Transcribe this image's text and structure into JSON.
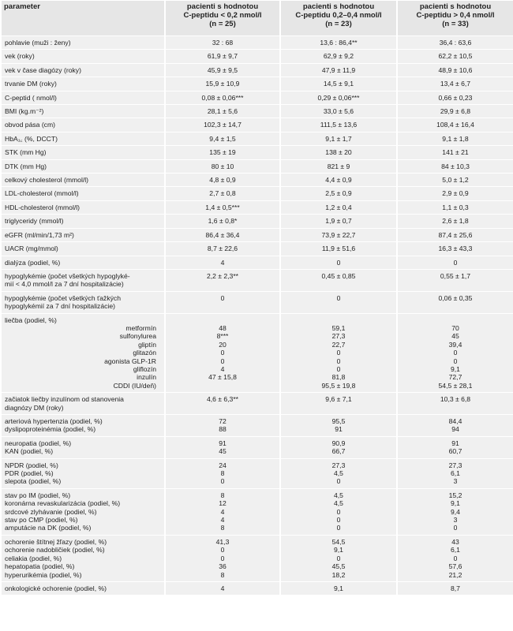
{
  "header": {
    "parameter": "parameter",
    "groups": [
      {
        "line1": "pacienti s hodnotou",
        "line2": "C-peptidu < 0,2 nmol/l",
        "line3": "(n = 25)"
      },
      {
        "line1": "pacienti s hodnotou",
        "line2": "C-peptidu 0,2–0,4 nmol/l",
        "line3": "(n = 23)"
      },
      {
        "line1": "pacienti s hodnotou",
        "line2": "C-peptidu > 0,4 nmol/l",
        "line3": "(n = 33)"
      }
    ]
  },
  "rows": [
    {
      "labels": [
        "pohlavie (muži : ženy)"
      ],
      "v1": [
        "32 : 68"
      ],
      "v2": [
        "13,6 : 86,4**"
      ],
      "v3": [
        "36,4 : 63,6"
      ]
    },
    {
      "labels": [
        "vek (roky)"
      ],
      "v1": [
        "61,9 ± 9,7"
      ],
      "v2": [
        "62,9 ± 9,2"
      ],
      "v3": [
        "62,2 ± 10,5"
      ]
    },
    {
      "labels": [
        "vek v čase diagózy (roky)"
      ],
      "v1": [
        "45,9 ± 9,5"
      ],
      "v2": [
        "47,9 ± 11,9"
      ],
      "v3": [
        "48,9 ± 10,6"
      ]
    },
    {
      "labels": [
        "trvanie DM (roky)"
      ],
      "v1": [
        "15,9 ± 10,9"
      ],
      "v2": [
        "14,5 ± 9,1"
      ],
      "v3": [
        "13,4 ± 6,7"
      ]
    },
    {
      "labels": [
        "C-peptid ( nmol/l)"
      ],
      "v1": [
        "0,08 ± 0,06***"
      ],
      "v2": [
        "0,29 ± 0,06***"
      ],
      "v3": [
        "0,66 ± 0,23"
      ]
    },
    {
      "labels": [
        "BMI (kg.m⁻²)"
      ],
      "v1": [
        "28,1 ± 5,6"
      ],
      "v2": [
        "33,0 ± 5,6"
      ],
      "v3": [
        "29,9 ± 6,8"
      ]
    },
    {
      "labels": [
        "obvod pása (cm)"
      ],
      "v1": [
        "102,3 ± 14,7"
      ],
      "v2": [
        "111,5 ± 13,6"
      ],
      "v3": [
        "108,4 ± 16,4"
      ]
    },
    {
      "labels": [
        "HbA₁꜀ (%, DCCT)"
      ],
      "v1": [
        "9,4 ± 1,5"
      ],
      "v2": [
        "9,1 ± 1,7"
      ],
      "v3": [
        "9,1 ± 1,8"
      ]
    },
    {
      "labels": [
        "STK (mm Hg)"
      ],
      "v1": [
        "135 ± 19"
      ],
      "v2": [
        "138 ± 20"
      ],
      "v3": [
        "141 ± 21"
      ]
    },
    {
      "labels": [
        "DTK (mm Hg)"
      ],
      "v1": [
        "80 ± 10"
      ],
      "v2": [
        "821 ± 9"
      ],
      "v3": [
        "84 ± 10,3"
      ]
    },
    {
      "labels": [
        "celkový cholesterol (mmol/l)"
      ],
      "v1": [
        "4,8 ± 0,9"
      ],
      "v2": [
        "4,4 ± 0,9"
      ],
      "v3": [
        "5,0 ± 1,2"
      ]
    },
    {
      "labels": [
        "LDL-cholesterol (mmol/l)"
      ],
      "v1": [
        "2,7 ± 0,8"
      ],
      "v2": [
        "2,5 ± 0,9"
      ],
      "v3": [
        "2,9 ± 0,9"
      ]
    },
    {
      "labels": [
        "HDL-cholesterol (mmol/l)"
      ],
      "v1": [
        "1,4 ± 0,5***"
      ],
      "v2": [
        "1,2 ± 0,4"
      ],
      "v3": [
        "1,1 ± 0,3"
      ]
    },
    {
      "labels": [
        "triglyceridy (mmol/l)"
      ],
      "v1": [
        "1,6 ± 0,8*"
      ],
      "v2": [
        "1,9 ± 0,7"
      ],
      "v3": [
        "2,6 ± 1,8"
      ]
    },
    {
      "labels": [
        "eGFR (ml/min/1,73 m²)"
      ],
      "v1": [
        "86,4 ± 36,4"
      ],
      "v2": [
        "73,9 ± 22,7"
      ],
      "v3": [
        "87,4 ± 25,6"
      ]
    },
    {
      "labels": [
        "UACR (mg/mmol)"
      ],
      "v1": [
        "8,7 ± 22,6"
      ],
      "v2": [
        "11,9 ± 51,6"
      ],
      "v3": [
        "16,3 ± 43,3"
      ]
    },
    {
      "labels": [
        "dialýza (podiel, %)"
      ],
      "v1": [
        "4"
      ],
      "v2": [
        "0"
      ],
      "v3": [
        "0"
      ]
    },
    {
      "labels": [
        "hypoglykémie (počet všetkých hypoglyké-",
        "mií < 4,0 mmol/l za 7 dní hospitalizácie)"
      ],
      "v1": [
        "2,2 ± 2,3**"
      ],
      "v2": [
        "0,45 ± 0,85"
      ],
      "v3": [
        "0,55 ± 1,7"
      ]
    },
    {
      "labels": [
        "hypoglykémie (počet všetkých ťažkých",
        "hypoglykémií za 7 dní hospitalizácie)"
      ],
      "v1": [
        "0"
      ],
      "v2": [
        "0"
      ],
      "v3": [
        "0,06 ± 0,35"
      ]
    },
    {
      "head": "liečba (podiel, %)",
      "subs": [
        "metformín",
        "sulfonylurea",
        "gliptín",
        "glitazón",
        "agonista GLP-1R",
        "gliflozín",
        "inzulín",
        "CDDI (IU/deň)"
      ],
      "v1": [
        "48",
        "8***",
        "20",
        "0",
        "0",
        "4",
        "47 ± 15,8",
        ""
      ],
      "v2": [
        "59,1",
        "27,3",
        "22,7",
        "0",
        "0",
        "0",
        "81,8",
        "95,5 ± 19,8"
      ],
      "v3": [
        "70",
        "45",
        "39,4",
        "0",
        "0",
        "9,1",
        "72,7",
        "54,5 ± 28,1"
      ]
    },
    {
      "labels": [
        "začiatok liečby inzulínom od stanovenia",
        "diagnózy DM (roky)"
      ],
      "v1": [
        "4,6 ± 6,3**"
      ],
      "v2": [
        "9,6 ± 7,1"
      ],
      "v3": [
        "10,3 ± 6,8"
      ]
    },
    {
      "labels": [
        "arteriová hypertenzia (podiel, %)",
        "dyslipoproteinémia (podiel, %)"
      ],
      "v1": [
        "72",
        "88"
      ],
      "v2": [
        "95,5",
        "91"
      ],
      "v3": [
        "84,4",
        "94"
      ]
    },
    {
      "labels": [
        "neuropatia (podiel, %)",
        "KAN (podiel, %)"
      ],
      "v1": [
        "91",
        "45"
      ],
      "v2": [
        "90,9",
        "66,7"
      ],
      "v3": [
        "91",
        "60,7"
      ]
    },
    {
      "labels": [
        "NPDR (podiel, %)",
        "PDR (podiel, %)",
        "slepota (podiel, %)"
      ],
      "v1": [
        "24",
        "8",
        "0"
      ],
      "v2": [
        "27,3",
        "4,5",
        "0"
      ],
      "v3": [
        "27,3",
        "6,1",
        "3"
      ]
    },
    {
      "labels": [
        "stav po IM (podiel, %)",
        "koronárna revaskularizácia (podiel, %)",
        "srdcové zlyhávanie (podiel, %)",
        "stav po CMP (podiel, %)",
        "amputácie na DK (podiel, %)"
      ],
      "v1": [
        "8",
        "12",
        "4",
        "4",
        "8"
      ],
      "v2": [
        "4,5",
        "4,5",
        "0",
        "0",
        "0"
      ],
      "v3": [
        "15,2",
        "9,1",
        "9,4",
        "3",
        "0"
      ]
    },
    {
      "labels": [
        "ochorenie štítnej žľazy (podiel, %)",
        "ochorenie nadobličiek (podiel, %)",
        "celiakia (podiel, %)",
        "hepatopatia (podiel, %)",
        "hyperurikémia (podiel, %)"
      ],
      "v1": [
        "41,3",
        "0",
        "0",
        "36",
        "8"
      ],
      "v2": [
        "54,5",
        "9,1",
        "0",
        "45,5",
        "18,2"
      ],
      "v3": [
        "43",
        "6,1",
        "0",
        "57,6",
        "21,2"
      ]
    },
    {
      "labels": [
        "onkologické ochorenie (podiel, %)"
      ],
      "v1": [
        "4"
      ],
      "v2": [
        "9,1"
      ],
      "v3": [
        "8,7"
      ]
    }
  ]
}
